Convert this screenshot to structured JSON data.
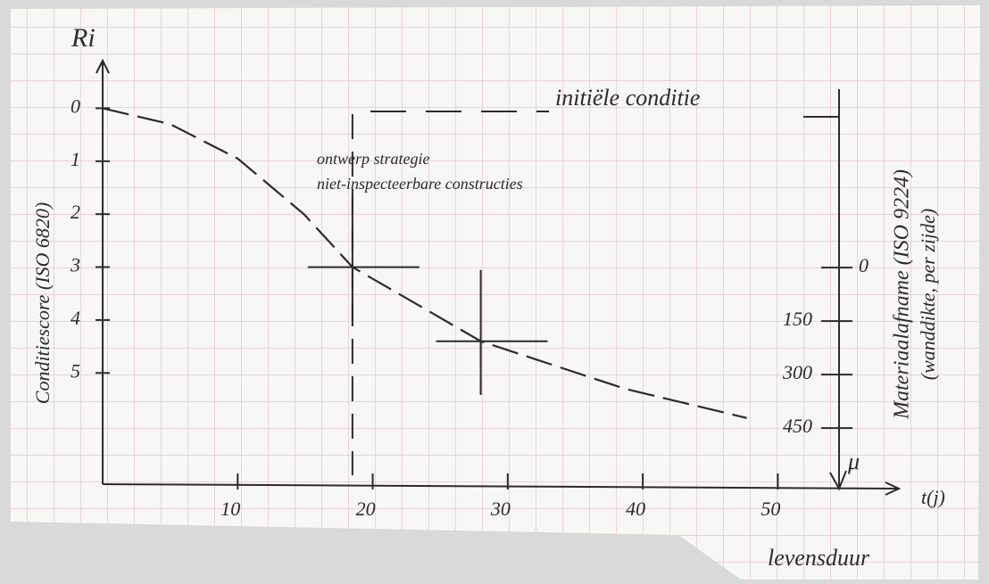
{
  "chart_data": {
    "type": "line",
    "y_label": "Ri",
    "y_title": "Conditiescore (ISO 6820)",
    "x_label": "t(j)",
    "x_title": "levensduur",
    "y2_label": "μ",
    "y2_title": "Materiaalafname (ISO 9224)",
    "y2_subtitle": "(wanddikte, per zijde)",
    "annotations": [
      "initiële conditie",
      "ontwerp strategie",
      "niet-inspecteerbare constructies"
    ],
    "series": [
      {
        "color": "#2b2b2b",
        "x": [
          0,
          5,
          10,
          14.9,
          18.5,
          28,
          38.7,
          47.7
        ],
        "values": [
          0,
          0.3,
          0.95,
          2.0,
          3.0,
          4.4,
          5.3,
          5.85
        ]
      }
    ],
    "markers": [
      {
        "x": 18.5,
        "y": 3
      },
      {
        "x": 28,
        "y": 4.4
      }
    ],
    "xlim": [
      0,
      58.5
    ],
    "xticks": [
      10,
      20,
      30,
      40,
      50
    ],
    "ylim": [
      -0.9,
      7.1
    ],
    "yticks": [
      0,
      1,
      2,
      3,
      4,
      5
    ],
    "y_reversed": true,
    "y2lim": [
      -580,
      607
    ],
    "y2ticks": [
      0,
      150,
      300,
      450
    ],
    "y2_reversed": true
  }
}
